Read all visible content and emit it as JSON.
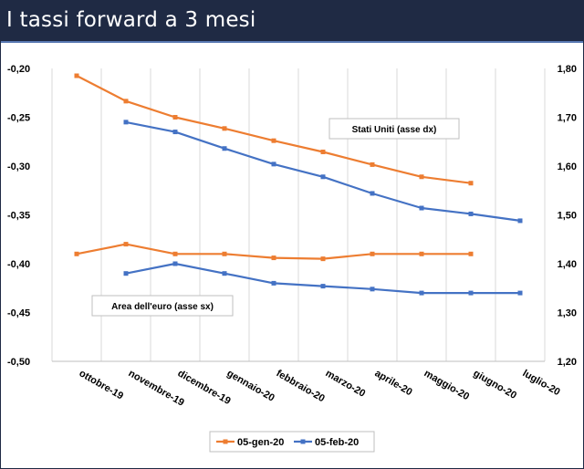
{
  "header": {
    "title": "I tassi forward a 3 mesi"
  },
  "colors": {
    "header_bg": "#1f2a44",
    "series_orange": "#ed7d31",
    "series_blue": "#4472c4",
    "grid": "#d9d9d9"
  },
  "chart_data": {
    "type": "line",
    "title": "",
    "categories": [
      "ottobre-19",
      "novembre-19",
      "dicembre-19",
      "gennaio-20",
      "febbraio-20",
      "marzo-20",
      "aprile-20",
      "maggio-20",
      "giugno-20",
      "luglio-20"
    ],
    "y_left": {
      "min": -0.5,
      "max": -0.2,
      "step": 0.05,
      "tick_labels": [
        "-0,50",
        "-0,45",
        "-0,40",
        "-0,35",
        "-0,30",
        "-0,25",
        "-0,20"
      ]
    },
    "y_right": {
      "min": 1.2,
      "max": 1.8,
      "step": 0.1,
      "tick_labels": [
        "1,20",
        "1,30",
        "1,40",
        "1,50",
        "1,60",
        "1,70",
        "1,80"
      ]
    },
    "grid": "vertical",
    "legend_position": "bottom",
    "legend": [
      "05-gen-20",
      "05-feb-20"
    ],
    "annotations": {
      "us": "Stati Uniti (asse dx)",
      "euro": "Area dell'euro (asse sx)"
    },
    "series": [
      {
        "name": "05-gen-20",
        "group": "us",
        "axis": "right",
        "color": "#ed7d31",
        "values": [
          1.785,
          1.733,
          1.7,
          1.677,
          1.652,
          1.629,
          1.603,
          1.578,
          1.565,
          null
        ]
      },
      {
        "name": "05-feb-20",
        "group": "us",
        "axis": "right",
        "color": "#4472c4",
        "values": [
          null,
          1.69,
          1.67,
          1.636,
          1.604,
          1.578,
          1.544,
          1.514,
          1.502,
          1.488
        ]
      },
      {
        "name": "05-gen-20",
        "group": "euro",
        "axis": "left",
        "color": "#ed7d31",
        "values": [
          -0.39,
          -0.38,
          -0.39,
          -0.39,
          -0.394,
          -0.395,
          -0.39,
          -0.39,
          -0.39,
          null
        ]
      },
      {
        "name": "05-feb-20",
        "group": "euro",
        "axis": "left",
        "color": "#4472c4",
        "values": [
          null,
          -0.41,
          -0.4,
          -0.41,
          -0.42,
          -0.423,
          -0.426,
          -0.43,
          -0.43,
          -0.43
        ]
      }
    ]
  }
}
